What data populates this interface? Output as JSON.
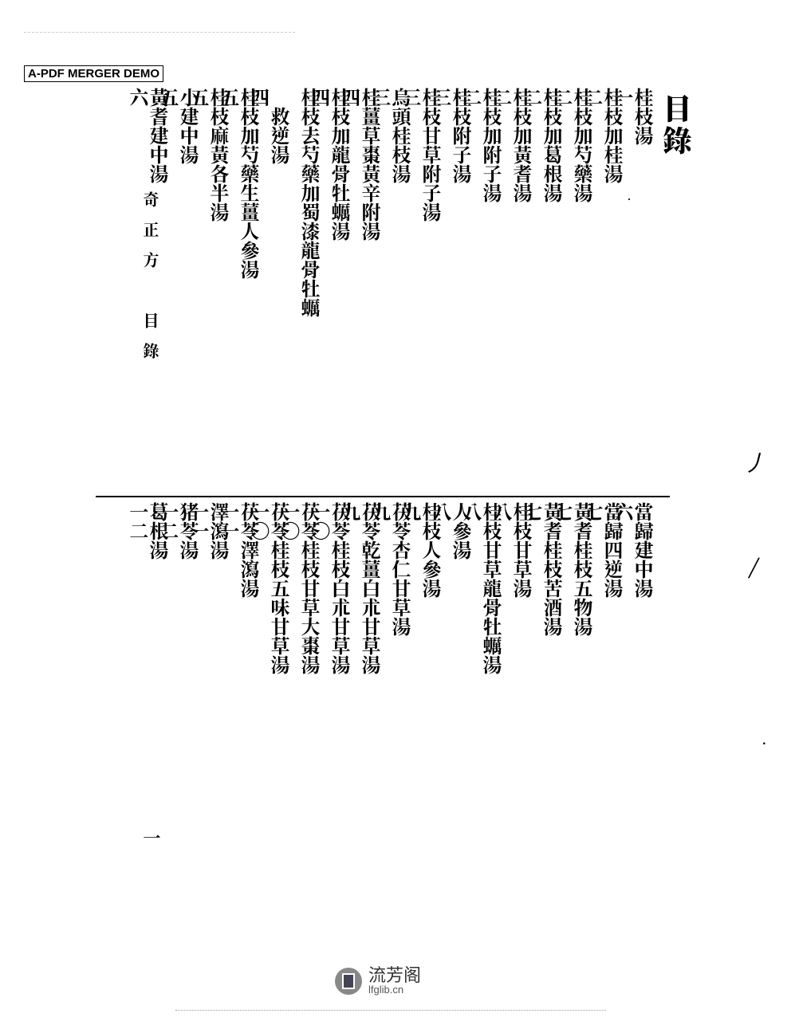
{
  "watermark": "A-PDF MERGER DEMO",
  "toc_title": "目錄",
  "spine": {
    "label": "奇正方　目錄",
    "page": "一"
  },
  "entries_top": [
    {
      "label": "桂枝湯",
      "page": "一"
    },
    {
      "label": "桂枝加桂湯",
      "page": "二"
    },
    {
      "label": "桂枝加芍藥湯",
      "page": "二"
    },
    {
      "label": "桂枝加葛根湯",
      "page": "二"
    },
    {
      "label": "桂枝加黃耆湯",
      "page": "二"
    },
    {
      "label": "桂枝加附子湯",
      "page": "二"
    },
    {
      "label": "桂枝附子湯",
      "page": "三"
    },
    {
      "label": "桂枝甘草附子湯",
      "page": "三"
    },
    {
      "label": "烏頭桂枝湯",
      "page": "三"
    },
    {
      "label": "桂薑草棗黃辛附湯",
      "page": "四"
    },
    {
      "label": "桂枝加龍骨牡蠣湯",
      "page": "四"
    },
    {
      "label": "桂枝去芍藥加蜀漆龍骨牡蠣",
      "page": ""
    },
    {
      "label": "　救逆湯",
      "page": "四"
    },
    {
      "label": "桂枝加芍藥生薑人參湯",
      "page": "五"
    },
    {
      "label": "桂枝麻黃各半湯",
      "page": "五"
    },
    {
      "label": "小建中湯",
      "page": "五"
    },
    {
      "label": "黃耆建中湯",
      "page": "六"
    }
  ],
  "entries_bottom": [
    {
      "label": "當歸建中湯",
      "page": "六"
    },
    {
      "label": "當歸四逆湯",
      "page": "七"
    },
    {
      "label": "黃耆桂枝五物湯",
      "page": "七"
    },
    {
      "label": "黃耆桂枝苦酒湯",
      "page": "七"
    },
    {
      "label": "桂枝甘草湯",
      "page": "八"
    },
    {
      "label": "桂枝甘草龍骨牡蠣湯",
      "page": "八"
    },
    {
      "label": "人參湯",
      "page": "八"
    },
    {
      "label": "桂枝人參湯",
      "page": "九"
    },
    {
      "label": "茯苓杏仁甘草湯",
      "page": "九"
    },
    {
      "label": "茯苓乾薑白朮甘草湯",
      "page": "九"
    },
    {
      "label": "茯苓桂枝白朮甘草湯",
      "page": "一〇"
    },
    {
      "label": "茯苓桂枝甘草大棗湯",
      "page": "一〇"
    },
    {
      "label": "茯苓桂枝五味甘草湯",
      "page": "一〇"
    },
    {
      "label": "茯苓澤瀉湯",
      "page": "一一"
    },
    {
      "label": "澤瀉湯",
      "page": "一一"
    },
    {
      "label": "猪苓湯",
      "page": "一二"
    },
    {
      "label": "葛根湯",
      "page": "一二"
    }
  ],
  "footer": {
    "cn": "流芳阁",
    "url": "lfglib.cn"
  }
}
